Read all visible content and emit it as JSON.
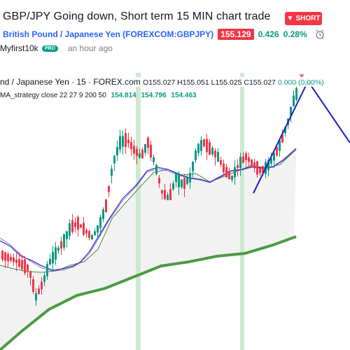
{
  "idea": {
    "title": "GBP/JPY Going down, Short term 15 MIN chart trade",
    "badge": "SHORT",
    "symbol_full": "British Pound / Japanese Yen (FOREXCOM:GBPJPY)",
    "price": "155.129",
    "change": "0.426",
    "change_pct": "0.28%",
    "author": "Myfirst10k",
    "author_badge": "PRO",
    "time_ago": "an hour ago"
  },
  "legend": {
    "series_title": "nd / Japanese Yen · 15 · FOREX.com",
    "o": "O155.027",
    "h": "H155.051",
    "l": "L155.025",
    "c": "C155.027",
    "change": "0.000 (0.00%)",
    "indicator": "MA_strategy close 22 27 9 200 50",
    "ma1": "154.814",
    "ma2": "154.796",
    "ma3": "154.463"
  },
  "colors": {
    "up": "#089981",
    "down": "#f23645",
    "accent": "#2962ff",
    "ma_long": "#4c9a43",
    "ma_mid": "#3a8a3a",
    "ma_fast": "#2e3bd6",
    "projection": "#1c1cbf",
    "highlight": "#c8e6c9"
  },
  "icons": {
    "badge": "arrow-down-icon",
    "alert": "alarm-clock-icon"
  }
}
